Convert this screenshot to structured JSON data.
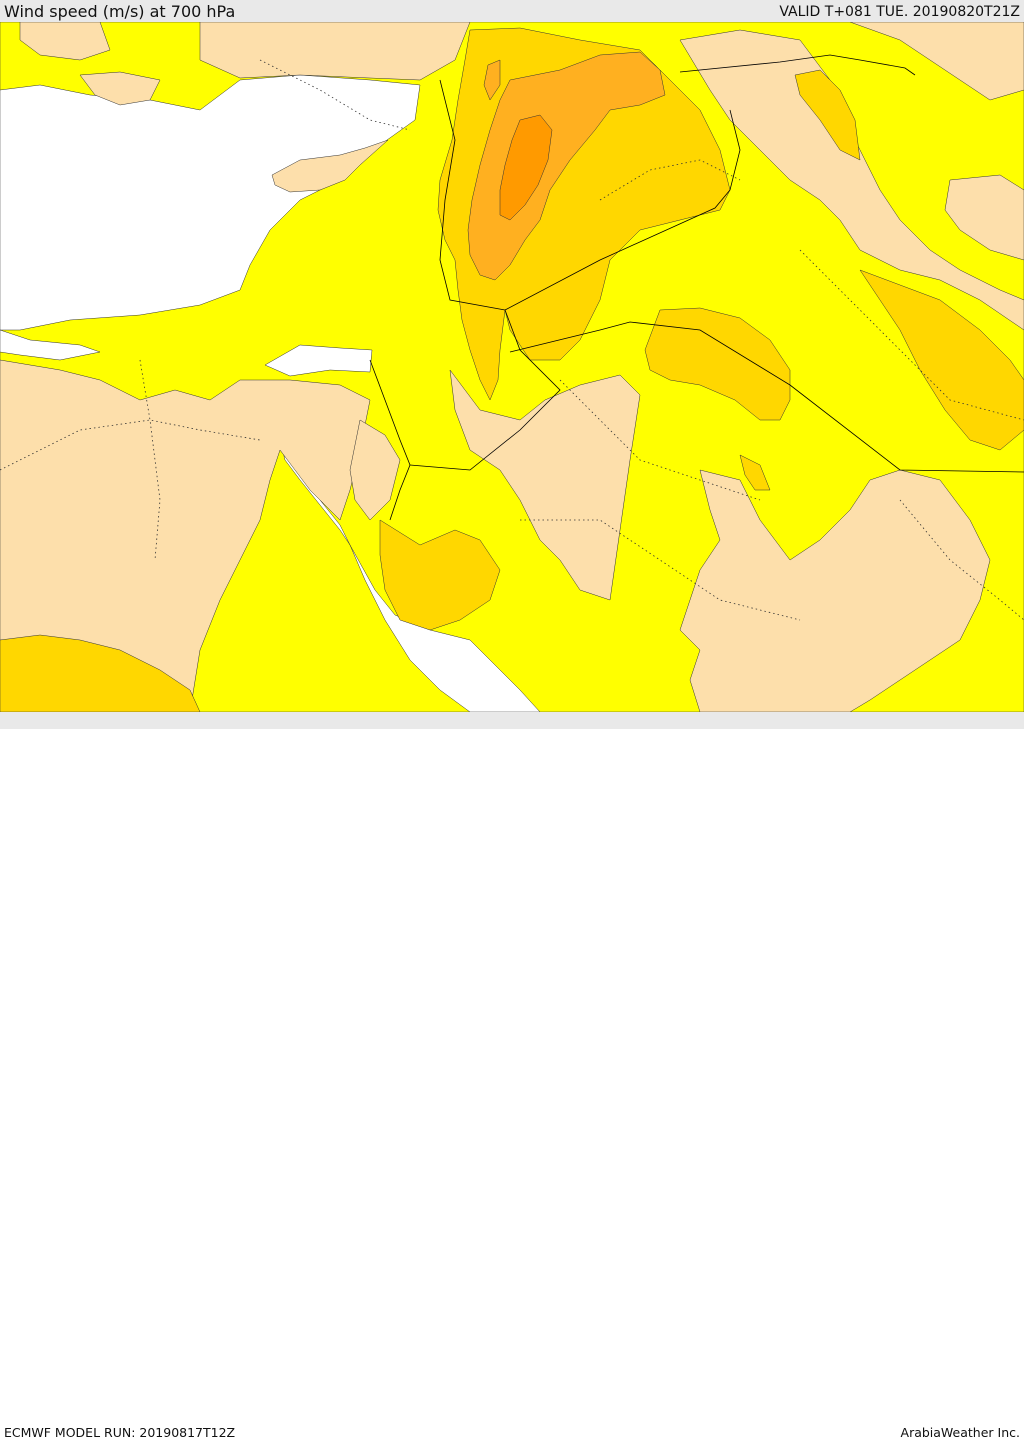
{
  "header": {
    "title": "Wind speed (m/s) at 700 hPa",
    "valid": "VALID T+081 TUE. 20190820T21Z"
  },
  "footer": {
    "model_run": "ECMWF MODEL RUN: 20190817T12Z",
    "credit": "ArabiaWeather Inc."
  },
  "map": {
    "colors": {
      "sea": "#ffffff",
      "weak_wind": "#fddfab",
      "light_wind": "#ffff00",
      "moderate_wind": "#ffd700",
      "strong_wind": "#ffb020",
      "very_strong_wind": "#ff9a00",
      "outline": "#333333"
    }
  }
}
